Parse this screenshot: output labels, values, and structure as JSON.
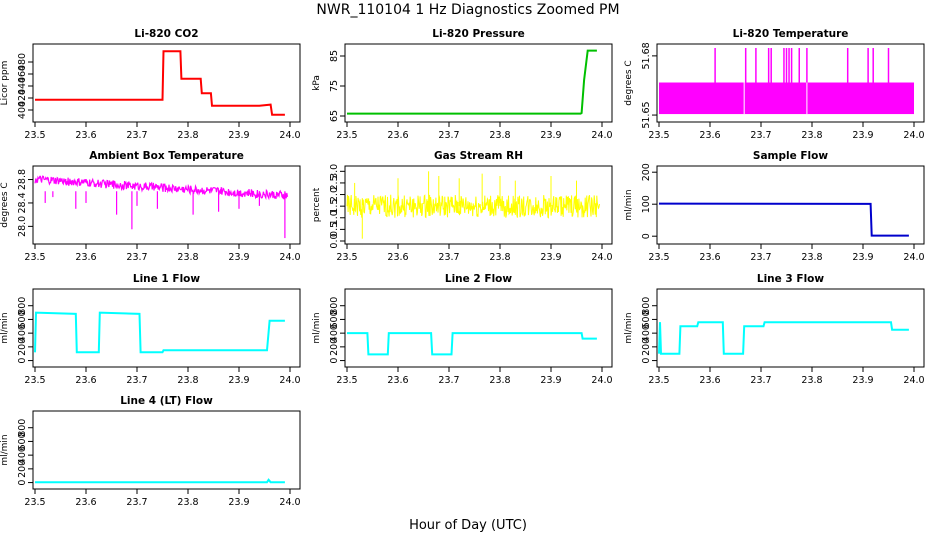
{
  "figure": {
    "title": "NWR_110104  1 Hz Diagnostics Zoomed PM",
    "xlabel": "Hour of Day (UTC)"
  },
  "chart_data": [
    {
      "type": "line",
      "title": "Li-820 CO2",
      "ylabel": "Licor ppm",
      "color": "#ff0000",
      "xlim": [
        23.5,
        24.0
      ],
      "ylim": [
        385,
        505
      ],
      "xticks": [
        23.5,
        23.6,
        23.7,
        23.8,
        23.9,
        24.0
      ],
      "xtick_labels": [
        "23.5",
        "23.6",
        "23.7",
        "23.8",
        "23.9",
        "24.0"
      ],
      "yticks": [
        400,
        420,
        440,
        460,
        480
      ],
      "ytick_labels": [
        "400",
        "420",
        "440",
        "460",
        "480"
      ],
      "series": [
        {
          "x": [
            23.5,
            23.75,
            23.752,
            23.785,
            23.787,
            23.825,
            23.827,
            23.845,
            23.847,
            23.94,
            23.962,
            23.965,
            23.99
          ],
          "y": [
            417,
            417,
            498,
            498,
            452,
            452,
            428,
            428,
            407,
            407,
            409,
            392,
            392
          ]
        }
      ]
    },
    {
      "type": "line",
      "title": "Li-820 Pressure",
      "ylabel": "kPa",
      "color": "#00c000",
      "xlim": [
        23.5,
        24.0
      ],
      "ylim": [
        64,
        88
      ],
      "xticks": [
        23.5,
        23.6,
        23.7,
        23.8,
        23.9,
        24.0
      ],
      "xtick_labels": [
        "23.5",
        "23.6",
        "23.7",
        "23.8",
        "23.9",
        "24.0"
      ],
      "yticks": [
        65,
        75,
        85
      ],
      "ytick_labels": [
        "65",
        "75",
        "85"
      ],
      "series": [
        {
          "x": [
            23.5,
            23.958,
            23.96,
            23.965,
            23.972,
            23.99
          ],
          "y": [
            65.8,
            65.8,
            66.0,
            77.0,
            86.8,
            86.8
          ]
        }
      ]
    },
    {
      "type": "line",
      "title": "Li-820 Temperature",
      "ylabel": "degrees C",
      "color": "#ff00ff",
      "xlim": [
        23.5,
        24.0
      ],
      "ylim": [
        51.648,
        51.6845
      ],
      "xticks": [
        23.5,
        23.6,
        23.7,
        23.8,
        23.9,
        24.0
      ],
      "xtick_labels": [
        "23.5",
        "23.6",
        "23.7",
        "23.8",
        "23.9",
        "24.0"
      ],
      "yticks": [
        51.65,
        51.68
      ],
      "ytick_labels": [
        "51.65",
        "51.68"
      ],
      "band": [
        51.6505,
        51.6665
      ],
      "spikes_x": [
        23.61,
        23.67,
        23.69,
        23.715,
        23.72,
        23.745,
        23.75,
        23.755,
        23.76,
        23.775,
        23.79,
        23.87,
        23.91,
        23.92,
        23.95
      ],
      "spike_top": 51.684,
      "series": [
        {
          "name": "",
          "values": []
        }
      ]
    },
    {
      "type": "line",
      "title": "Ambient Box Temperature",
      "ylabel": "degrees C",
      "color": "#ff00ff",
      "xlim": [
        23.5,
        24.0
      ],
      "ylim": [
        27.75,
        28.98
      ],
      "xticks": [
        23.5,
        23.6,
        23.7,
        23.8,
        23.9,
        24.0
      ],
      "xtick_labels": [
        "23.5",
        "23.6",
        "23.7",
        "23.8",
        "23.9",
        "24.0"
      ],
      "yticks": [
        28.0,
        28.4,
        28.8
      ],
      "ytick_labels": [
        "28.0",
        "28.4",
        "28.8"
      ],
      "band_start": [
        28.73,
        28.87
      ],
      "band_end": [
        28.45,
        28.6
      ],
      "dips_x": [
        23.52,
        23.535,
        23.58,
        23.6,
        23.66,
        23.69,
        23.7,
        23.74,
        23.81,
        23.86,
        23.9,
        23.94,
        23.99
      ],
      "dips_y": [
        28.4,
        28.5,
        28.3,
        28.4,
        28.2,
        27.95,
        28.35,
        28.3,
        28.2,
        28.25,
        28.3,
        28.35,
        27.8
      ],
      "series": [
        {
          "name": "",
          "values": []
        }
      ]
    },
    {
      "type": "line",
      "title": "Gas Stream RH",
      "ylabel": "percent",
      "color": "#ffff00",
      "xlim": [
        23.5,
        24.0
      ],
      "ylim": [
        0,
        3.1
      ],
      "xticks": [
        23.5,
        23.6,
        23.7,
        23.8,
        23.9,
        24.0
      ],
      "xtick_labels": [
        "23.5",
        "23.6",
        "23.7",
        "23.8",
        "23.9",
        "24.0"
      ],
      "yticks": [
        0.0,
        0.5,
        1.0,
        1.5,
        2.0,
        2.5,
        3.0
      ],
      "ytick_labels": [
        "0.0",
        "0.5",
        "1.0",
        "1.5",
        "2.0",
        "2.5",
        "3.0"
      ],
      "band": [
        1.0,
        2.0
      ],
      "peaks_x": [
        23.515,
        23.53,
        23.6,
        23.66,
        23.68,
        23.72,
        23.765,
        23.8,
        23.83,
        23.9,
        23.95
      ],
      "peaks_y": [
        2.5,
        0.1,
        2.7,
        3.0,
        2.8,
        2.7,
        2.9,
        2.8,
        2.6,
        2.8,
        2.6
      ],
      "series": [
        {
          "name": "",
          "values": []
        }
      ]
    },
    {
      "type": "line",
      "title": "Sample Flow",
      "ylabel": "ml/min",
      "color": "#0000cc",
      "xlim": [
        23.5,
        24.0
      ],
      "ylim": [
        -15,
        210
      ],
      "xticks": [
        23.5,
        23.6,
        23.7,
        23.8,
        23.9,
        24.0
      ],
      "xtick_labels": [
        "23.5",
        "23.6",
        "23.7",
        "23.8",
        "23.9",
        "24.0"
      ],
      "yticks": [
        0,
        100,
        200
      ],
      "ytick_labels": [
        "0",
        "100",
        "200"
      ],
      "series": [
        {
          "x": [
            23.5,
            23.915,
            23.917,
            23.99
          ],
          "y": [
            102,
            101,
            2,
            2
          ]
        }
      ]
    },
    {
      "type": "line",
      "title": "Line 1 Flow",
      "ylabel": "ml/min",
      "color": "#00ffff",
      "xlim": [
        23.5,
        24.0
      ],
      "ylim": [
        -50,
        1000
      ],
      "xticks": [
        23.5,
        23.6,
        23.7,
        23.8,
        23.9,
        24.0
      ],
      "xtick_labels": [
        "23.5",
        "23.6",
        "23.7",
        "23.8",
        "23.9",
        "24.0"
      ],
      "yticks": [
        0,
        200,
        400,
        600,
        800
      ],
      "ytick_labels": [
        "0",
        "200",
        "400",
        "600",
        "800"
      ],
      "series": [
        {
          "x": [
            23.5,
            23.502,
            23.58,
            23.582,
            23.625,
            23.627,
            23.705,
            23.707,
            23.75,
            23.752,
            23.955,
            23.96,
            23.99
          ],
          "y": [
            120,
            700,
            680,
            120,
            120,
            700,
            680,
            120,
            120,
            150,
            150,
            580,
            580
          ]
        }
      ]
    },
    {
      "type": "line",
      "title": "Line 2 Flow",
      "ylabel": "ml/min",
      "color": "#00ffff",
      "xlim": [
        23.5,
        24.0
      ],
      "ylim": [
        -50,
        1000
      ],
      "xticks": [
        23.5,
        23.6,
        23.7,
        23.8,
        23.9,
        24.0
      ],
      "xtick_labels": [
        "23.5",
        "23.6",
        "23.7",
        "23.8",
        "23.9",
        "24.0"
      ],
      "yticks": [
        0,
        200,
        400,
        600,
        800
      ],
      "ytick_labels": [
        "0",
        "200",
        "400",
        "600",
        "800"
      ],
      "series": [
        {
          "x": [
            23.5,
            23.54,
            23.542,
            23.58,
            23.582,
            23.665,
            23.667,
            23.705,
            23.707,
            23.96,
            23.962,
            23.99
          ],
          "y": [
            400,
            400,
            90,
            90,
            400,
            400,
            90,
            90,
            400,
            400,
            320,
            320
          ]
        }
      ]
    },
    {
      "type": "line",
      "title": "Line 3 Flow",
      "ylabel": "ml/min",
      "color": "#00ffff",
      "xlim": [
        23.5,
        24.0
      ],
      "ylim": [
        -50,
        1000
      ],
      "xticks": [
        23.5,
        23.6,
        23.7,
        23.8,
        23.9,
        24.0
      ],
      "xtick_labels": [
        "23.5",
        "23.6",
        "23.7",
        "23.8",
        "23.9",
        "24.0"
      ],
      "yticks": [
        0,
        200,
        400,
        600,
        800
      ],
      "ytick_labels": [
        "0",
        "200",
        "400",
        "600",
        "800"
      ],
      "series": [
        {
          "x": [
            23.5,
            23.502,
            23.504,
            23.54,
            23.542,
            23.575,
            23.577,
            23.625,
            23.627,
            23.665,
            23.667,
            23.705,
            23.707,
            23.955,
            23.957,
            23.99
          ],
          "y": [
            100,
            560,
            100,
            100,
            500,
            500,
            560,
            560,
            100,
            100,
            500,
            500,
            560,
            560,
            450,
            450
          ]
        }
      ]
    },
    {
      "type": "line",
      "title": "Line 4 (LT) Flow",
      "ylabel": "ml/min",
      "color": "#00ffff",
      "xlim": [
        23.5,
        24.0
      ],
      "ylim": [
        -50,
        1000
      ],
      "xticks": [
        23.5,
        23.6,
        23.7,
        23.8,
        23.9,
        24.0
      ],
      "xtick_labels": [
        "23.5",
        "23.6",
        "23.7",
        "23.8",
        "23.9",
        "24.0"
      ],
      "yticks": [
        0,
        200,
        400,
        600,
        800
      ],
      "ytick_labels": [
        "0",
        "200",
        "400",
        "600",
        "800"
      ],
      "series": [
        {
          "x": [
            23.5,
            23.955,
            23.958,
            23.962,
            23.99
          ],
          "y": [
            5,
            5,
            40,
            5,
            5
          ]
        }
      ]
    }
  ]
}
